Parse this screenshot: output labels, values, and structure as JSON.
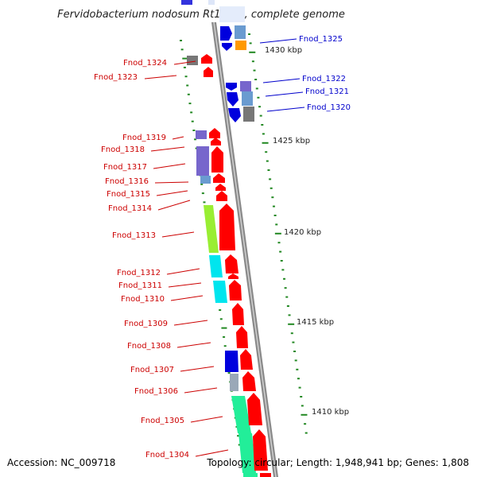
{
  "title": "Fervidobacterium nodosum Rt17-B1, complete genome",
  "footer": {
    "accession": "Accession: NC_009718",
    "summary": "Topology: circular; Length: 1,948,941 bp; Genes: 1,808"
  },
  "scale_labels": [
    "1430 kbp",
    "1425 kbp",
    "1420 kbp",
    "1415 kbp",
    "1410 kbp"
  ],
  "genes_minus": [
    "Fnod_1324",
    "Fnod_1323",
    "Fnod_1319",
    "Fnod_1318",
    "Fnod_1317",
    "Fnod_1316",
    "Fnod_1315",
    "Fnod_1314",
    "Fnod_1313",
    "Fnod_1312",
    "Fnod_1311",
    "Fnod_1310",
    "Fnod_1309",
    "Fnod_1308",
    "Fnod_1307",
    "Fnod_1306",
    "Fnod_1305",
    "Fnod_1304"
  ],
  "genes_plus": [
    "Fnod_1325",
    "Fnod_1322",
    "Fnod_1321",
    "Fnod_1320"
  ],
  "colors": {
    "minus_label": "#cc0000",
    "plus_label": "#0000cc",
    "backbone": "#888888",
    "tick": "#228822",
    "cds_red": "#ff0000",
    "cds_blue": "#0000dd",
    "cog_blue": "#6699cc",
    "cog_grey": "#777777",
    "cog_orange": "#ff9900",
    "cog_purple": "#7766cc",
    "cog_lime": "#99ee33",
    "cog_cyan": "#00e5ee",
    "cog_green": "#22ee99"
  }
}
